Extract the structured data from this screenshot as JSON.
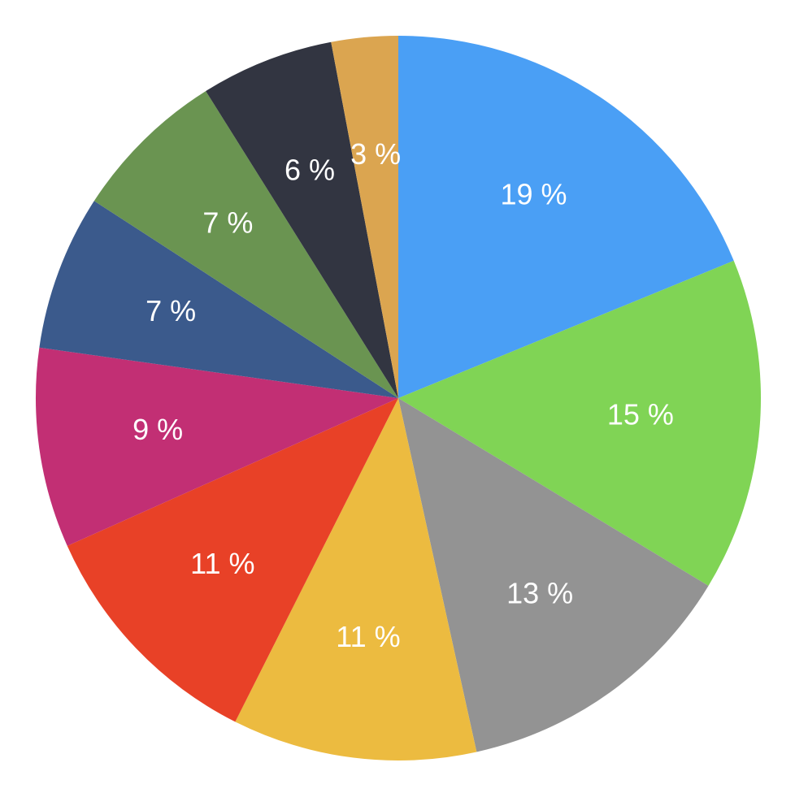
{
  "chart_data": {
    "type": "pie",
    "values": [
      19,
      15,
      13,
      11,
      11,
      9,
      7,
      7,
      6,
      3
    ],
    "value_labels": [
      "19 %",
      "15 %",
      "13 %",
      "11 %",
      "11 %",
      "9 %",
      "7 %",
      "7 %",
      "6 %",
      "3 %"
    ],
    "colors": [
      "#4a9ff5",
      "#80d455",
      "#939393",
      "#ecbb40",
      "#e84127",
      "#c22f74",
      "#3b5a8c",
      "#6a9451",
      "#323541",
      "#dba550"
    ]
  }
}
